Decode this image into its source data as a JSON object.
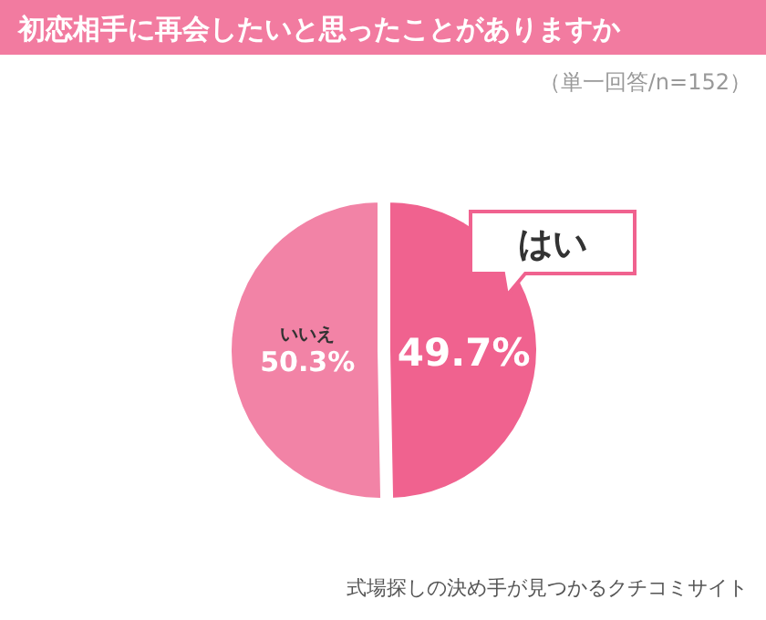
{
  "chart_data": {
    "type": "pie",
    "title": "初恋相手に再会したいと思ったことがありますか",
    "subtitle": "（単一回答/n=152）",
    "categories": [
      "はい",
      "いいえ"
    ],
    "values": [
      49.7,
      50.3
    ],
    "value_labels": [
      "49.7%",
      "50.3%"
    ],
    "colors": [
      "#f0628f",
      "#f283a6"
    ],
    "annotations": [
      "式場探しの決め手が見つかるクチコミサイト"
    ]
  }
}
